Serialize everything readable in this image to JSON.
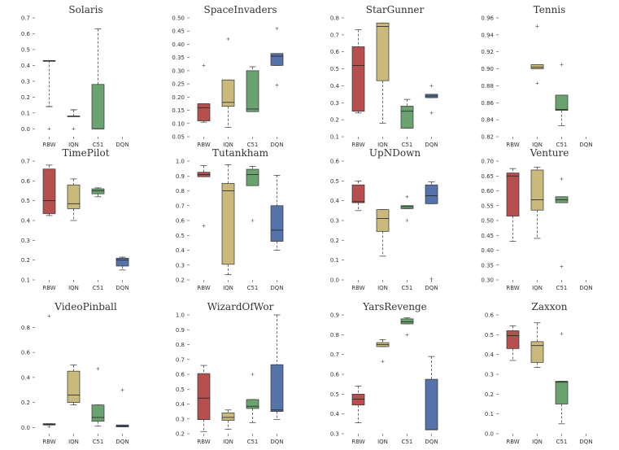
{
  "chart_data": [
    {
      "type": "box",
      "title": "Solaris",
      "categories": [
        "RBW",
        "IQN",
        "C51",
        "DQN"
      ],
      "ylim": [
        -0.05,
        0.7
      ],
      "yticks": [
        0.0,
        0.1,
        0.2,
        0.3,
        0.4,
        0.5,
        0.6,
        0.7
      ],
      "ytick_labels": [
        "0.0",
        "0.1",
        "0.2",
        "0.3",
        "0.4",
        "0.5",
        "0.6",
        "0.7"
      ],
      "colors": [
        "#b5504f",
        "#c9b97a",
        "#6aa36f",
        "#5573aa"
      ],
      "boxes": [
        {
          "q1": 0.43,
          "med": 0.43,
          "q3": 0.43,
          "wlo": 0.14,
          "whi": 0.14,
          "fliers": [
            0.0
          ]
        },
        {
          "q1": 0.08,
          "med": 0.08,
          "q3": 0.08,
          "wlo": 0.12,
          "whi": 0.12,
          "fliers": [
            0.0
          ]
        },
        {
          "q1": 0.0,
          "med": 0.0,
          "q3": 0.28,
          "wlo": 0.0,
          "whi": 0.63,
          "fliers": []
        },
        null
      ]
    },
    {
      "type": "box",
      "title": "SpaceInvaders",
      "categories": [
        "RBW",
        "IQN",
        "C51",
        "DQN"
      ],
      "ylim": [
        0.05,
        0.5
      ],
      "yticks": [
        0.05,
        0.1,
        0.15,
        0.2,
        0.25,
        0.3,
        0.35,
        0.4,
        0.45,
        0.5
      ],
      "ytick_labels": [
        "0.05",
        "0.10",
        "0.15",
        "0.20",
        "0.25",
        "0.30",
        "0.35",
        "0.40",
        "0.45",
        "0.50"
      ],
      "colors": [
        "#b5504f",
        "#c9b97a",
        "#6aa36f",
        "#5573aa"
      ],
      "boxes": [
        {
          "q1": 0.11,
          "med": 0.16,
          "q3": 0.175,
          "wlo": 0.105,
          "whi": 0.175,
          "fliers": [
            0.32
          ]
        },
        {
          "q1": 0.165,
          "med": 0.18,
          "q3": 0.265,
          "wlo": 0.085,
          "whi": 0.265,
          "fliers": [
            0.42
          ]
        },
        {
          "q1": 0.145,
          "med": 0.155,
          "q3": 0.3,
          "wlo": 0.145,
          "whi": 0.315,
          "fliers": []
        },
        {
          "q1": 0.32,
          "med": 0.355,
          "q3": 0.365,
          "wlo": 0.32,
          "whi": 0.365,
          "fliers": [
            0.46,
            0.245
          ]
        }
      ]
    },
    {
      "type": "box",
      "title": "StarGunner",
      "categories": [
        "RBW",
        "IQN",
        "C51",
        "DQN"
      ],
      "ylim": [
        0.1,
        0.8
      ],
      "yticks": [
        0.1,
        0.2,
        0.3,
        0.4,
        0.5,
        0.6,
        0.7,
        0.8
      ],
      "ytick_labels": [
        "0.1",
        "0.2",
        "0.3",
        "0.4",
        "0.5",
        "0.6",
        "0.7",
        "0.8"
      ],
      "colors": [
        "#b5504f",
        "#c9b97a",
        "#6aa36f",
        "#5573aa"
      ],
      "boxes": [
        {
          "q1": 0.25,
          "med": 0.52,
          "q3": 0.63,
          "wlo": 0.24,
          "whi": 0.73,
          "fliers": []
        },
        {
          "q1": 0.43,
          "med": 0.75,
          "q3": 0.77,
          "wlo": 0.18,
          "whi": 0.77,
          "fliers": []
        },
        {
          "q1": 0.15,
          "med": 0.25,
          "q3": 0.28,
          "wlo": 0.15,
          "whi": 0.32,
          "fliers": []
        },
        {
          "q1": 0.33,
          "med": 0.34,
          "q3": 0.35,
          "wlo": 0.33,
          "whi": 0.35,
          "fliers": [
            0.4,
            0.24
          ]
        }
      ]
    },
    {
      "type": "box",
      "title": "Tennis",
      "categories": [
        "RBW",
        "IQN",
        "C51",
        "DQN"
      ],
      "ylim": [
        0.82,
        0.96
      ],
      "yticks": [
        0.82,
        0.84,
        0.86,
        0.88,
        0.9,
        0.92,
        0.94,
        0.96
      ],
      "ytick_labels": [
        "0.82",
        "0.84",
        "0.86",
        "0.88",
        "0.90",
        "0.92",
        "0.94",
        "0.96"
      ],
      "colors": [
        "#b5504f",
        "#c9b97a",
        "#6aa36f",
        "#5573aa"
      ],
      "boxes": [
        null,
        {
          "q1": 0.9,
          "med": 0.902,
          "q3": 0.905,
          "wlo": 0.9,
          "whi": 0.905,
          "fliers": [
            0.95,
            0.883
          ]
        },
        {
          "q1": 0.851,
          "med": 0.852,
          "q3": 0.869,
          "wlo": 0.833,
          "whi": 0.869,
          "fliers": [
            0.905
          ]
        },
        null
      ]
    },
    {
      "type": "box",
      "title": "TimePilot",
      "categories": [
        "RBW",
        "IQN",
        "C51",
        "DQN"
      ],
      "ylim": [
        0.1,
        0.7
      ],
      "yticks": [
        0.1,
        0.2,
        0.3,
        0.4,
        0.5,
        0.6,
        0.7
      ],
      "ytick_labels": [
        "0.1",
        "0.2",
        "0.3",
        "0.4",
        "0.5",
        "0.6",
        "0.7"
      ],
      "colors": [
        "#b5504f",
        "#c9b97a",
        "#6aa36f",
        "#5573aa"
      ],
      "boxes": [
        {
          "q1": 0.435,
          "med": 0.5,
          "q3": 0.66,
          "wlo": 0.425,
          "whi": 0.68,
          "fliers": []
        },
        {
          "q1": 0.46,
          "med": 0.485,
          "q3": 0.58,
          "wlo": 0.4,
          "whi": 0.61,
          "fliers": []
        },
        {
          "q1": 0.535,
          "med": 0.55,
          "q3": 0.56,
          "wlo": 0.52,
          "whi": 0.565,
          "fliers": []
        },
        {
          "q1": 0.17,
          "med": 0.2,
          "q3": 0.21,
          "wlo": 0.15,
          "whi": 0.215,
          "fliers": []
        }
      ]
    },
    {
      "type": "box",
      "title": "Tutankham",
      "categories": [
        "RBW",
        "IQN",
        "C51",
        "DQN"
      ],
      "ylim": [
        0.2,
        1.0
      ],
      "yticks": [
        0.2,
        0.3,
        0.4,
        0.5,
        0.6,
        0.7,
        0.8,
        0.9,
        1.0
      ],
      "ytick_labels": [
        "0.2",
        "0.3",
        "0.4",
        "0.5",
        "0.6",
        "0.7",
        "0.8",
        "0.9",
        "1.0"
      ],
      "colors": [
        "#b5504f",
        "#c9b97a",
        "#6aa36f",
        "#5573aa"
      ],
      "boxes": [
        {
          "q1": 0.895,
          "med": 0.91,
          "q3": 0.925,
          "wlo": 0.895,
          "whi": 0.97,
          "fliers": [
            0.565
          ]
        },
        {
          "q1": 0.305,
          "med": 0.8,
          "q3": 0.85,
          "wlo": 0.235,
          "whi": 0.975,
          "fliers": []
        },
        {
          "q1": 0.835,
          "med": 0.91,
          "q3": 0.945,
          "wlo": 0.835,
          "whi": 0.965,
          "fliers": [
            0.6
          ]
        },
        {
          "q1": 0.46,
          "med": 0.535,
          "q3": 0.7,
          "wlo": 0.4,
          "whi": 0.905,
          "fliers": []
        }
      ]
    },
    {
      "type": "box",
      "title": "UpNDown",
      "categories": [
        "RBW",
        "IQN",
        "C51",
        "DQN"
      ],
      "ylim": [
        0.0,
        0.6
      ],
      "yticks": [
        0.0,
        0.1,
        0.2,
        0.3,
        0.4,
        0.5,
        0.6
      ],
      "ytick_labels": [
        "0.0",
        "0.1",
        "0.2",
        "0.3",
        "0.4",
        "0.5",
        "0.6"
      ],
      "colors": [
        "#b5504f",
        "#c9b97a",
        "#6aa36f",
        "#5573aa"
      ],
      "boxes": [
        {
          "q1": 0.39,
          "med": 0.395,
          "q3": 0.48,
          "wlo": 0.35,
          "whi": 0.5,
          "fliers": []
        },
        {
          "q1": 0.245,
          "med": 0.31,
          "q3": 0.355,
          "wlo": 0.12,
          "whi": 0.355,
          "fliers": []
        },
        {
          "q1": 0.36,
          "med": 0.37,
          "q3": 0.375,
          "wlo": 0.36,
          "whi": 0.375,
          "fliers": [
            0.42,
            0.3
          ]
        },
        {
          "q1": 0.385,
          "med": 0.425,
          "q3": 0.48,
          "wlo": 0.385,
          "whi": 0.495,
          "fliers": [
            0.005
          ]
        }
      ]
    },
    {
      "type": "box",
      "title": "Venture",
      "categories": [
        "RBW",
        "IQN",
        "C51",
        "DQN"
      ],
      "ylim": [
        0.3,
        0.7
      ],
      "yticks": [
        0.3,
        0.35,
        0.4,
        0.45,
        0.5,
        0.55,
        0.6,
        0.65,
        0.7
      ],
      "ytick_labels": [
        "0.30",
        "0.35",
        "0.40",
        "0.45",
        "0.50",
        "0.55",
        "0.60",
        "0.65",
        "0.70"
      ],
      "colors": [
        "#b5504f",
        "#c9b97a",
        "#6aa36f",
        "#5573aa"
      ],
      "boxes": [
        {
          "q1": 0.515,
          "med": 0.65,
          "q3": 0.66,
          "wlo": 0.43,
          "whi": 0.675,
          "fliers": []
        },
        {
          "q1": 0.535,
          "med": 0.57,
          "q3": 0.67,
          "wlo": 0.44,
          "whi": 0.68,
          "fliers": []
        },
        {
          "q1": 0.56,
          "med": 0.57,
          "q3": 0.58,
          "wlo": 0.56,
          "whi": 0.58,
          "fliers": [
            0.64,
            0.345
          ]
        },
        null
      ]
    },
    {
      "type": "box",
      "title": "VideoPinball",
      "categories": [
        "RBW",
        "IQN",
        "C51",
        "DQN"
      ],
      "ylim": [
        -0.05,
        0.9
      ],
      "yticks": [
        0.0,
        0.2,
        0.4,
        0.6,
        0.8
      ],
      "ytick_labels": [
        "0.0",
        "0.2",
        "0.4",
        "0.6",
        "0.8"
      ],
      "colors": [
        "#b5504f",
        "#c9b97a",
        "#6aa36f",
        "#5573aa"
      ],
      "boxes": [
        {
          "q1": 0.02,
          "med": 0.025,
          "q3": 0.03,
          "wlo": 0.02,
          "whi": 0.03,
          "fliers": [
            0.89,
            0.005
          ]
        },
        {
          "q1": 0.2,
          "med": 0.26,
          "q3": 0.45,
          "wlo": 0.18,
          "whi": 0.5,
          "fliers": []
        },
        {
          "q1": 0.05,
          "med": 0.08,
          "q3": 0.18,
          "wlo": 0.01,
          "whi": 0.18,
          "fliers": [
            0.47
          ]
        },
        {
          "q1": 0.005,
          "med": 0.01,
          "q3": 0.02,
          "wlo": 0.005,
          "whi": 0.02,
          "fliers": [
            0.3
          ]
        }
      ]
    },
    {
      "type": "box",
      "title": "WizardOfWor",
      "categories": [
        "RBW",
        "IQN",
        "C51",
        "DQN"
      ],
      "ylim": [
        0.2,
        1.0
      ],
      "yticks": [
        0.2,
        0.3,
        0.4,
        0.5,
        0.6,
        0.7,
        0.8,
        0.9,
        1.0
      ],
      "ytick_labels": [
        "0.2",
        "0.3",
        "0.4",
        "0.5",
        "0.6",
        "0.7",
        "0.8",
        "0.9",
        "1.0"
      ],
      "colors": [
        "#b5504f",
        "#c9b97a",
        "#6aa36f",
        "#5573aa"
      ],
      "boxes": [
        {
          "q1": 0.295,
          "med": 0.44,
          "q3": 0.605,
          "wlo": 0.215,
          "whi": 0.66,
          "fliers": []
        },
        {
          "q1": 0.29,
          "med": 0.31,
          "q3": 0.34,
          "wlo": 0.23,
          "whi": 0.36,
          "fliers": []
        },
        {
          "q1": 0.37,
          "med": 0.385,
          "q3": 0.43,
          "wlo": 0.275,
          "whi": 0.43,
          "fliers": [
            0.6
          ]
        },
        {
          "q1": 0.35,
          "med": 0.36,
          "q3": 0.665,
          "wlo": 0.295,
          "whi": 1.0,
          "fliers": []
        }
      ]
    },
    {
      "type": "box",
      "title": "YarsRevenge",
      "categories": [
        "RBW",
        "IQN",
        "C51",
        "DQN"
      ],
      "ylim": [
        0.3,
        0.9
      ],
      "yticks": [
        0.3,
        0.4,
        0.5,
        0.6,
        0.7,
        0.8,
        0.9
      ],
      "ytick_labels": [
        "0.3",
        "0.4",
        "0.5",
        "0.6",
        "0.7",
        "0.8",
        "0.9"
      ],
      "colors": [
        "#b5504f",
        "#c9b97a",
        "#6aa36f",
        "#5573aa"
      ],
      "boxes": [
        {
          "q1": 0.445,
          "med": 0.475,
          "q3": 0.5,
          "wlo": 0.355,
          "whi": 0.54,
          "fliers": []
        },
        {
          "q1": 0.74,
          "med": 0.75,
          "q3": 0.76,
          "wlo": 0.74,
          "whi": 0.775,
          "fliers": [
            0.665
          ]
        },
        {
          "q1": 0.855,
          "med": 0.865,
          "q3": 0.88,
          "wlo": 0.855,
          "whi": 0.885,
          "fliers": [
            0.8
          ]
        },
        {
          "q1": 0.32,
          "med": 0.32,
          "q3": 0.575,
          "wlo": 0.32,
          "whi": 0.69,
          "fliers": []
        }
      ]
    },
    {
      "type": "box",
      "title": "Zaxxon",
      "categories": [
        "RBW",
        "IQN",
        "C51",
        "DQN"
      ],
      "ylim": [
        0.0,
        0.6
      ],
      "yticks": [
        0.0,
        0.1,
        0.2,
        0.3,
        0.4,
        0.5,
        0.6
      ],
      "ytick_labels": [
        "0.0",
        "0.1",
        "0.2",
        "0.3",
        "0.4",
        "0.5",
        "0.6"
      ],
      "colors": [
        "#b5504f",
        "#c9b97a",
        "#6aa36f",
        "#5573aa"
      ],
      "boxes": [
        {
          "q1": 0.43,
          "med": 0.495,
          "q3": 0.52,
          "wlo": 0.37,
          "whi": 0.545,
          "fliers": []
        },
        {
          "q1": 0.36,
          "med": 0.445,
          "q3": 0.465,
          "wlo": 0.335,
          "whi": 0.56,
          "fliers": []
        },
        {
          "q1": 0.15,
          "med": 0.26,
          "q3": 0.265,
          "wlo": 0.05,
          "whi": 0.265,
          "fliers": [
            0.505
          ]
        },
        null
      ]
    }
  ]
}
